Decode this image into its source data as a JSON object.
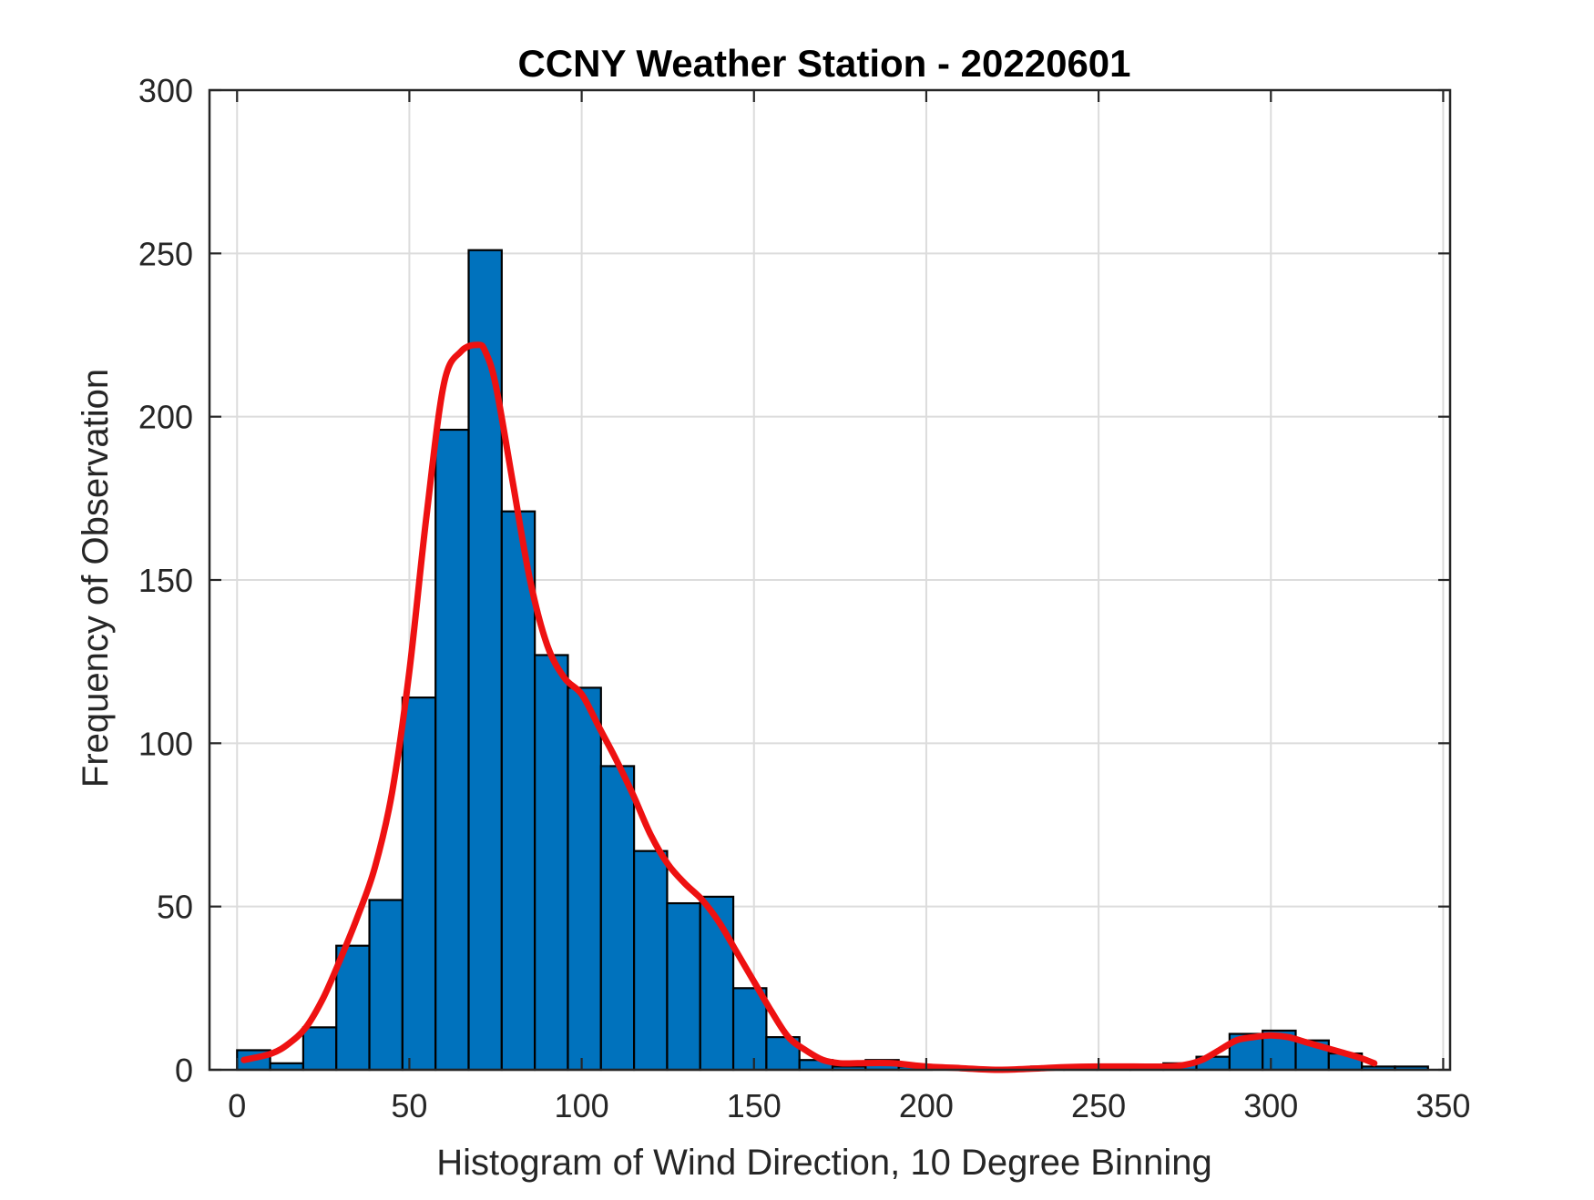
{
  "chart_data": {
    "type": "bar",
    "title": "CCNY Weather Station - 20220601",
    "xlabel": "Histogram of Wind Direction, 10 Degree Binning",
    "ylabel": "Frequency of Observation",
    "xlim": [
      -8,
      352
    ],
    "ylim": [
      0,
      300
    ],
    "xticks": [
      0,
      50,
      100,
      150,
      200,
      250,
      300,
      350
    ],
    "yticks": [
      0,
      50,
      100,
      150,
      200,
      250,
      300
    ],
    "grid": true,
    "bin_width": 9.6,
    "bins": [
      {
        "start": 0,
        "value": 6
      },
      {
        "start": 9.6,
        "value": 2
      },
      {
        "start": 19.2,
        "value": 13
      },
      {
        "start": 28.8,
        "value": 38
      },
      {
        "start": 38.4,
        "value": 52
      },
      {
        "start": 48,
        "value": 114
      },
      {
        "start": 57.6,
        "value": 196
      },
      {
        "start": 67.2,
        "value": 251
      },
      {
        "start": 76.8,
        "value": 171
      },
      {
        "start": 86.4,
        "value": 127
      },
      {
        "start": 96,
        "value": 117
      },
      {
        "start": 105.6,
        "value": 93
      },
      {
        "start": 115.2,
        "value": 67
      },
      {
        "start": 124.8,
        "value": 51
      },
      {
        "start": 134.4,
        "value": 53
      },
      {
        "start": 144,
        "value": 25
      },
      {
        "start": 153.6,
        "value": 10
      },
      {
        "start": 163.2,
        "value": 3
      },
      {
        "start": 172.8,
        "value": 1
      },
      {
        "start": 182.4,
        "value": 3
      },
      {
        "start": 192,
        "value": 1
      },
      {
        "start": 201.6,
        "value": 0
      },
      {
        "start": 211.2,
        "value": 0
      },
      {
        "start": 220.8,
        "value": 0
      },
      {
        "start": 230.4,
        "value": 1
      },
      {
        "start": 240,
        "value": 1
      },
      {
        "start": 249.6,
        "value": 1
      },
      {
        "start": 259.2,
        "value": 1
      },
      {
        "start": 268.8,
        "value": 2
      },
      {
        "start": 278.4,
        "value": 4
      },
      {
        "start": 288,
        "value": 11
      },
      {
        "start": 297.6,
        "value": 12
      },
      {
        "start": 307.2,
        "value": 9
      },
      {
        "start": 316.8,
        "value": 5
      },
      {
        "start": 326.4,
        "value": 1
      },
      {
        "start": 336,
        "value": 1
      }
    ],
    "curve": {
      "x": [
        2,
        10,
        15,
        20,
        25,
        30,
        35,
        40,
        45,
        50,
        55,
        60,
        65,
        70,
        72,
        75,
        80,
        85,
        90,
        95,
        100,
        105,
        110,
        115,
        120,
        125,
        130,
        135,
        140,
        145,
        150,
        155,
        160,
        165,
        170,
        175,
        180,
        190,
        200,
        210,
        220,
        230,
        240,
        250,
        260,
        270,
        275,
        280,
        285,
        290,
        295,
        300,
        305,
        310,
        315,
        320,
        325,
        330
      ],
      "y": [
        3,
        5,
        8,
        13,
        22,
        34,
        47,
        62,
        85,
        122,
        170,
        210,
        220,
        222,
        220,
        210,
        180,
        150,
        130,
        120,
        115,
        105,
        95,
        84,
        72,
        63,
        57,
        52,
        45,
        36,
        27,
        18,
        10,
        6,
        3,
        2,
        2,
        2,
        1,
        0.5,
        0,
        0.3,
        0.8,
        1,
        1,
        1,
        1.5,
        3,
        6,
        9,
        10,
        10.5,
        10,
        8.5,
        7,
        5.5,
        4,
        2
      ]
    },
    "colors": {
      "bar_fill": "#0072bd",
      "bar_edge": "#000000",
      "curve": "#ee1111",
      "grid": "#dcdcdc",
      "axes": "#262626"
    }
  }
}
